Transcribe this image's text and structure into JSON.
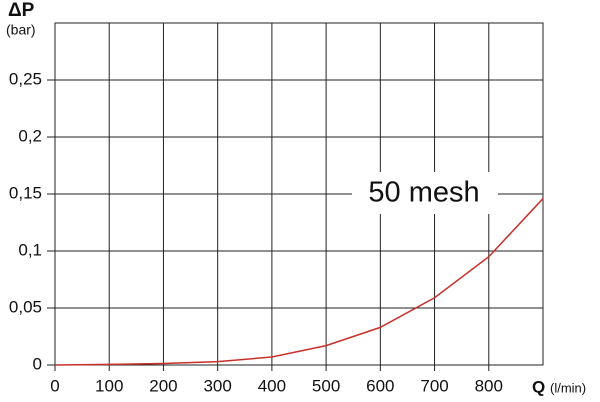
{
  "chart_data": {
    "type": "line",
    "y_label": "ΔP",
    "y_unit": "(bar)",
    "x_label": "Q",
    "x_unit": "(l/min)",
    "annotation": "50 mesh",
    "x": [
      0,
      100,
      200,
      300,
      400,
      500,
      600,
      700,
      800,
      900
    ],
    "series": [
      {
        "name": "50 mesh",
        "color": "#c8302a",
        "values": [
          0,
          0.0005,
          0.0013,
          0.003,
          0.007,
          0.017,
          0.033,
          0.059,
          0.095,
          0.146
        ]
      }
    ],
    "xlim": [
      0,
      900
    ],
    "ylim": [
      0,
      0.3
    ],
    "xticks": [
      0,
      100,
      200,
      300,
      400,
      500,
      600,
      700,
      800
    ],
    "yticks": [
      0,
      {
        "value": 0.05,
        "label": "0,05"
      },
      {
        "value": 0.1,
        "label": "0,1"
      },
      {
        "value": 0.15,
        "label": "0,15"
      },
      {
        "value": 0.2,
        "label": "0,2"
      },
      {
        "value": 0.25,
        "label": "0,25"
      }
    ],
    "grid": true
  }
}
